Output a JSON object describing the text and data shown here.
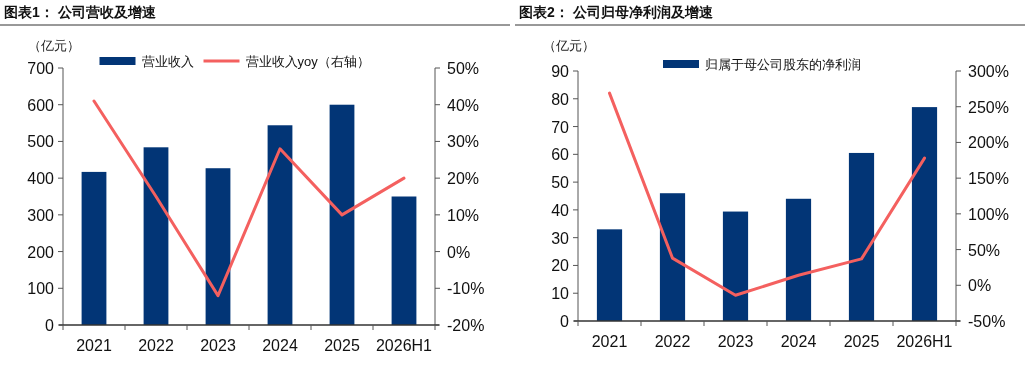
{
  "chart_data": [
    {
      "type": "bar",
      "title": "图表1： 公司营收及增速",
      "ylabel": "（亿元）",
      "categories": [
        "2021",
        "2022",
        "2023",
        "2024",
        "2025",
        "2026H1"
      ],
      "series": [
        {
          "name": "营业收入",
          "color": "#023576",
          "values": [
            417,
            484,
            427,
            544,
            600,
            350
          ]
        },
        {
          "name": "营业收入yoy（右轴）",
          "type": "line",
          "axis": "y2",
          "color": "#f4605f",
          "values": [
            41,
            15,
            -12,
            28,
            10,
            20
          ]
        }
      ],
      "ylim": [
        0,
        700
      ],
      "yticks": [
        0,
        100,
        200,
        300,
        400,
        500,
        600,
        700
      ],
      "y2lim": [
        -20,
        50
      ],
      "y2ticks": [
        {
          "value": -20,
          "label": "-20%"
        },
        {
          "value": -10,
          "label": "-10%"
        },
        {
          "value": 0,
          "label": "0%"
        },
        {
          "value": 10,
          "label": "10%"
        },
        {
          "value": 20,
          "label": "20%"
        },
        {
          "value": 30,
          "label": "30%"
        },
        {
          "value": 40,
          "label": "40%"
        },
        {
          "value": 50,
          "label": "50%"
        }
      ],
      "legend": "top",
      "grid": false
    },
    {
      "type": "bar",
      "title": "图表2： 公司归母净利润及增速",
      "ylabel": "（亿元）",
      "categories": [
        "2021",
        "2022",
        "2023",
        "2024",
        "2025",
        "2026H1"
      ],
      "series": [
        {
          "name": "归属于母公司股东的净利润",
          "color": "#023576",
          "values": [
            33,
            46,
            39.4,
            44,
            60.5,
            77
          ]
        },
        {
          "type": "line",
          "axis": "y2",
          "color": "#f4605f",
          "values": [
            269,
            38,
            -14,
            14,
            37,
            178
          ]
        }
      ],
      "ylim": [
        0,
        90
      ],
      "yticks": [
        0,
        10,
        20,
        30,
        40,
        50,
        60,
        70,
        80,
        90
      ],
      "y2lim": [
        -50,
        300
      ],
      "y2ticks": [
        {
          "value": -50,
          "label": "-50%"
        },
        {
          "value": 0,
          "label": "0%"
        },
        {
          "value": 50,
          "label": "50%"
        },
        {
          "value": 100,
          "label": "100%"
        },
        {
          "value": 150,
          "label": "150%"
        },
        {
          "value": 200,
          "label": "200%"
        },
        {
          "value": 250,
          "label": "250%"
        },
        {
          "value": 300,
          "label": "300%"
        }
      ],
      "legend": "top",
      "grid": false
    }
  ]
}
